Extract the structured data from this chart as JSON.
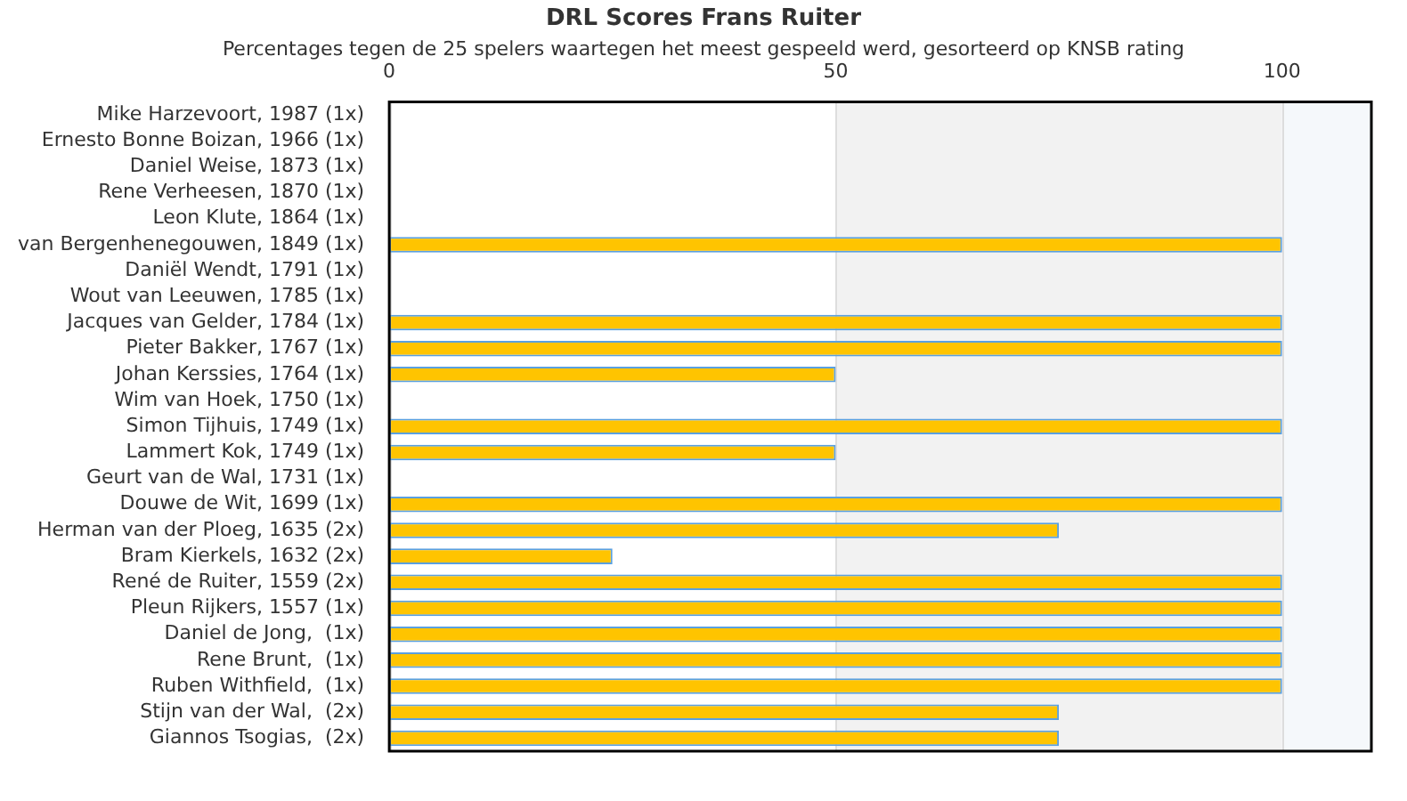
{
  "chart_data": {
    "type": "bar",
    "orientation": "horizontal",
    "title": "DRL Scores Frans Ruiter",
    "subtitle": "Percentages tegen de 25 spelers waartegen het meest gespeeld werd, gesorteerd op KNSB rating",
    "categories": [
      "Mike Harzevoort, 1987 (1x)",
      "Ernesto Bonne Boizan, 1966 (1x)",
      "Daniel Weise, 1873 (1x)",
      "Rene Verheesen, 1870 (1x)",
      "Leon Klute, 1864 (1x)",
      "van Bergenhenegouwen, 1849 (1x)",
      "Daniël Wendt, 1791 (1x)",
      "Wout van Leeuwen, 1785 (1x)",
      "Jacques van Gelder, 1784 (1x)",
      "Pieter Bakker, 1767 (1x)",
      "Johan Kerssies, 1764 (1x)",
      "Wim van Hoek, 1750 (1x)",
      "Simon Tijhuis, 1749 (1x)",
      "Lammert Kok, 1749 (1x)",
      "Geurt van de Wal, 1731 (1x)",
      "Douwe de Wit, 1699 (1x)",
      "Herman van der Ploeg, 1635 (2x)",
      "Bram Kierkels, 1632 (2x)",
      "René de Ruiter, 1559 (2x)",
      "Pleun Rijkers, 1557 (1x)",
      "Daniel de Jong,  (1x)",
      "Rene Brunt,  (1x)",
      "Ruben Withfield,  (1x)",
      "Stijn van der Wal,  (2x)",
      "Giannos Tsogias,  (2x)"
    ],
    "values": [
      0,
      0,
      0,
      0,
      0,
      100,
      0,
      0,
      100,
      100,
      50,
      0,
      100,
      50,
      0,
      100,
      75,
      25,
      100,
      100,
      100,
      100,
      100,
      75,
      75
    ],
    "color": "#ffc400",
    "xlim": [
      0,
      110
    ],
    "xticks": [
      0,
      50,
      100
    ],
    "bands": [
      {
        "axis": "x",
        "from": 50,
        "to": 100,
        "color": "#f2f2f2"
      },
      {
        "axis": "x",
        "from": 100,
        "to": 110,
        "color": "#f5f8fb"
      }
    ],
    "grid": "x",
    "legend": false
  }
}
